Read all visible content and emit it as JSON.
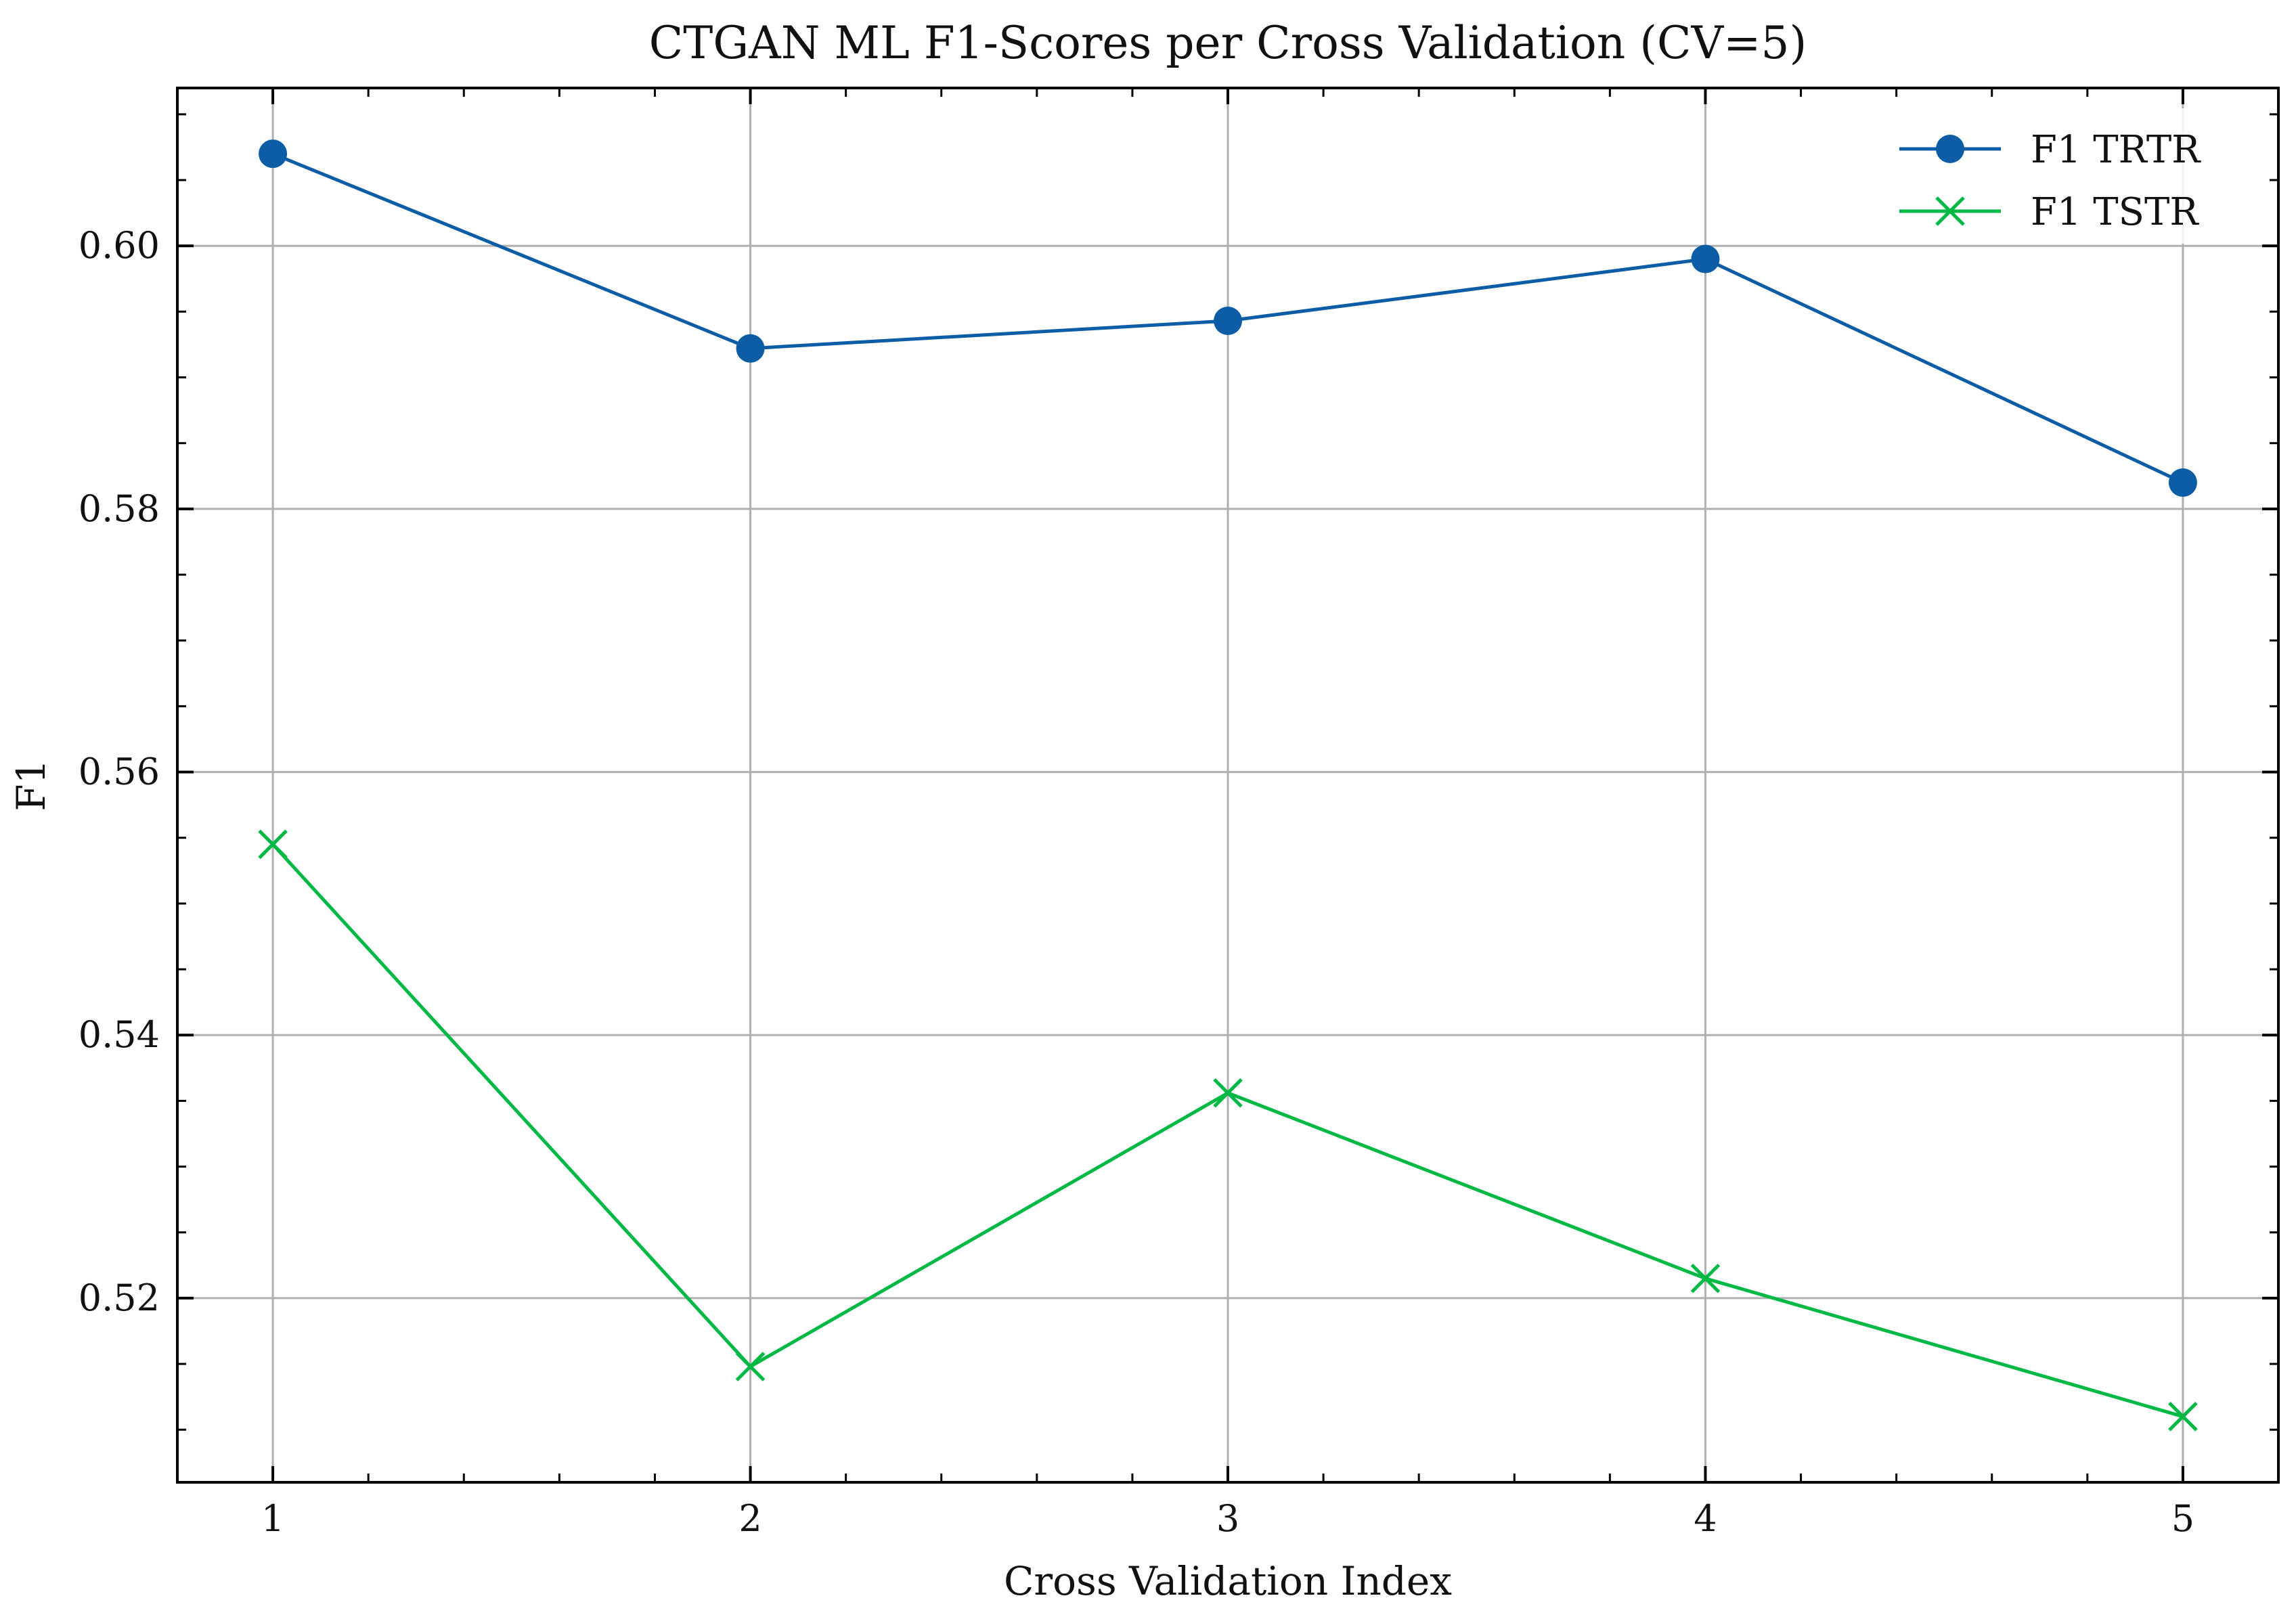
{
  "chart_data": {
    "type": "line",
    "title": "CTGAN ML F1-Scores per Cross Validation (CV=5)",
    "xlabel": "Cross Validation Index",
    "ylabel": "F1",
    "x": [
      1,
      2,
      3,
      4,
      5
    ],
    "x_tick_labels": [
      "1",
      "2",
      "3",
      "4",
      "5"
    ],
    "y_ticks": [
      0.52,
      0.54,
      0.56,
      0.58,
      0.6
    ],
    "y_tick_labels": [
      "0.52",
      "0.54",
      "0.56",
      "0.58",
      "0.60"
    ],
    "xlim": [
      0.8,
      5.2
    ],
    "ylim": [
      0.506,
      0.612
    ],
    "grid": true,
    "legend_position": "top-right",
    "series": [
      {
        "name": "F1 TRTR",
        "values": [
          0.607,
          0.5922,
          0.5943,
          0.599,
          0.582
        ],
        "color": "#0C5DA5",
        "marker": "circle"
      },
      {
        "name": "F1 TSTR",
        "values": [
          0.5545,
          0.5148,
          0.5356,
          0.5215,
          0.511
        ],
        "color": "#00B945",
        "marker": "x"
      }
    ]
  }
}
